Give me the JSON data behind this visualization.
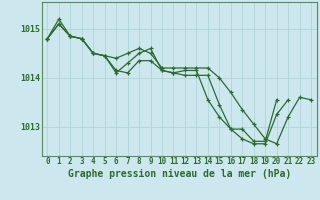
{
  "title": "Graphe pression niveau de la mer (hPa)",
  "bg_color": "#cce8ee",
  "grid_color": "#afd4da",
  "line_color": "#2d6a2d",
  "hours": [
    0,
    1,
    2,
    3,
    4,
    5,
    6,
    7,
    8,
    9,
    10,
    11,
    12,
    13,
    14,
    15,
    16,
    17,
    18,
    19,
    20,
    21,
    22,
    23
  ],
  "series1": [
    1014.8,
    1015.1,
    1014.85,
    1014.8,
    1014.5,
    1014.45,
    1014.15,
    1014.1,
    1014.35,
    1014.35,
    1014.15,
    1014.1,
    1014.15,
    1014.15,
    1013.55,
    1013.2,
    1012.95,
    1012.75,
    1012.65,
    1012.65,
    1013.25,
    1013.55,
    null,
    null
  ],
  "series2": [
    1014.8,
    1015.2,
    1014.85,
    1014.8,
    1014.5,
    1014.45,
    1014.1,
    1014.3,
    1014.5,
    1014.6,
    1014.15,
    1014.1,
    1014.05,
    1014.05,
    1014.05,
    1013.45,
    1012.95,
    1012.95,
    1012.7,
    1012.7,
    1013.55,
    null,
    null,
    null
  ],
  "series3": [
    1014.8,
    1015.1,
    1014.85,
    1014.8,
    1014.5,
    1014.45,
    1014.4,
    1014.5,
    1014.6,
    1014.5,
    1014.2,
    1014.2,
    1014.2,
    1014.2,
    1014.2,
    1014.0,
    1013.7,
    1013.35,
    1013.05,
    1012.75,
    1012.65,
    1013.2,
    1013.6,
    1013.55
  ],
  "ylim": [
    1012.4,
    1015.55
  ],
  "yticks": [
    1013.0,
    1014.0,
    1015.0
  ],
  "spine_color": "#5a8a5a"
}
